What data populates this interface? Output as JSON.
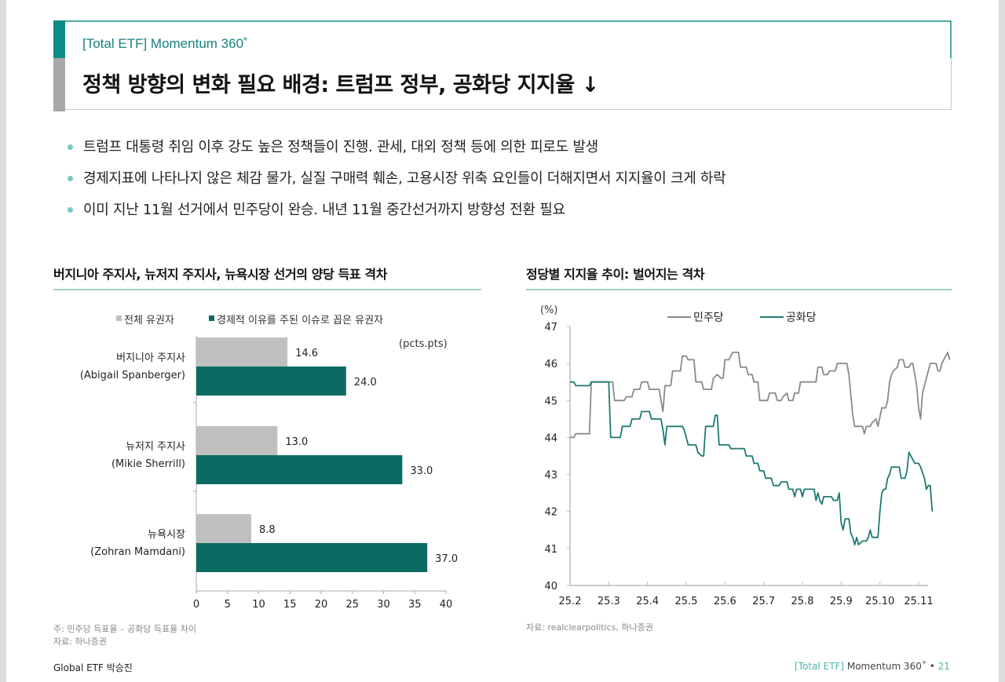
{
  "header": {
    "subtitle": "[Total ETF] Momentum 360˚",
    "title": "정책 방향의 변화 필요 배경: 트럼프 정부, 공화당 지지율 ↓"
  },
  "bullets": [
    "트럼프 대통령 취임 이후 강도 높은 정책들이 진행. 관세, 대외 정책 등에 의한 피로도 발생",
    "경제지표에 나타나지 않은 체감 물가, 실질 구매력 훼손, 고용시장 위축 요인들이 더해지면서 지지율이 크게 하락",
    "이미 지난 11월 선거에서 민주당이 완승. 내년 11월 중간선거까지 방향성 전환 필요"
  ],
  "left_section": {
    "title": "버지니아 주지사, 뉴저지 주지사, 뉴욕시장 선거의 양당 득표 격차",
    "note_line1": "주: 민주당 득표율 – 공화당 득표율 차이",
    "note_line2": "자료: 하나증권"
  },
  "right_section": {
    "title": "정당별 지지율 추이: 벌어지는 격차",
    "source": "자료: realclearpolitics, 하나증권"
  },
  "footer": {
    "left": "Global ETF 박승진",
    "right_bracket": "[Total ETF]",
    "right_text": " Momentum 360˚ • ",
    "page_number": "21"
  },
  "colors": {
    "teal_dark": "#0b6b62",
    "teal_accent": "#0f8c86",
    "grey_bar": "#c0c0c0",
    "dem_line": "#8a8a8a",
    "rep_line": "#1f7a72"
  },
  "chart_data": [
    {
      "type": "bar",
      "orientation": "horizontal",
      "title": "버지니아 주지사, 뉴저지 주지사, 뉴욕시장 선거의 양당 득표 격차",
      "unit_label": "(pcts.pts)",
      "categories": [
        {
          "line1": "버지니아 주지사",
          "line2": "(Abigail Spanberger)"
        },
        {
          "line1": "뉴저지 주지사",
          "line2": "(Mikie Sherrill)"
        },
        {
          "line1": "뉴욕시장",
          "line2": "(Zohran Mamdani)"
        }
      ],
      "series": [
        {
          "name": "전체 유권자",
          "color": "#c0c0c0",
          "values": [
            14.6,
            13.0,
            8.8
          ],
          "labels": [
            "14.6",
            "13.0",
            "8.8"
          ]
        },
        {
          "name": "경제적 이유를 주된 이슈로 꼽은 유권자",
          "color": "#0b6b62",
          "values": [
            24.0,
            33.0,
            37.0
          ],
          "labels": [
            "24.0",
            "33.0",
            "37.0"
          ]
        }
      ],
      "xlim": [
        0,
        40
      ],
      "xticks": [
        "0",
        "5",
        "10",
        "15",
        "20",
        "25",
        "30",
        "35",
        "40"
      ],
      "legend_position": "top"
    },
    {
      "type": "line",
      "title": "정당별 지지율 추이: 벌어지는 격차",
      "ylabel": "(%)",
      "ylim": [
        40,
        47
      ],
      "yticks": [
        "40",
        "41",
        "42",
        "43",
        "44",
        "45",
        "46",
        "47"
      ],
      "xticks": [
        "25.2",
        "25.3",
        "25.4",
        "25.5",
        "25.6",
        "25.7",
        "25.8",
        "25.9",
        "25.10",
        "25.11"
      ],
      "x_unit": "months since 25.2",
      "legend_position": "top-center",
      "series": [
        {
          "name": "민주당",
          "color": "#8a8a8a",
          "points": [
            [
              0,
              44.0
            ],
            [
              0.1,
              44.0
            ],
            [
              0.15,
              44.1
            ],
            [
              0.5,
              44.1
            ],
            [
              0.55,
              45.5
            ],
            [
              1.1,
              45.5
            ],
            [
              1.15,
              45.0
            ],
            [
              1.4,
              45.0
            ],
            [
              1.45,
              45.1
            ],
            [
              1.6,
              45.1
            ],
            [
              1.65,
              45.3
            ],
            [
              1.8,
              45.3
            ],
            [
              1.85,
              45.5
            ],
            [
              2.0,
              45.5
            ],
            [
              2.05,
              45.3
            ],
            [
              2.3,
              45.3
            ],
            [
              2.35,
              45.0
            ],
            [
              2.4,
              44.7
            ],
            [
              2.45,
              45.4
            ],
            [
              2.6,
              45.4
            ],
            [
              2.65,
              45.8
            ],
            [
              2.85,
              45.8
            ],
            [
              2.9,
              46.2
            ],
            [
              3.0,
              46.2
            ],
            [
              3.05,
              46.1
            ],
            [
              3.2,
              46.1
            ],
            [
              3.25,
              45.5
            ],
            [
              3.4,
              45.5
            ],
            [
              3.45,
              45.3
            ],
            [
              3.65,
              45.3
            ],
            [
              3.7,
              45.6
            ],
            [
              3.8,
              45.7
            ],
            [
              3.9,
              45.6
            ],
            [
              3.95,
              45.6
            ],
            [
              4.0,
              46.1
            ],
            [
              4.1,
              46.1
            ],
            [
              4.15,
              46.2
            ],
            [
              4.2,
              46.3
            ],
            [
              4.35,
              46.3
            ],
            [
              4.4,
              45.9
            ],
            [
              4.55,
              45.9
            ],
            [
              4.6,
              45.7
            ],
            [
              4.7,
              45.7
            ],
            [
              4.75,
              45.5
            ],
            [
              4.85,
              45.5
            ],
            [
              4.9,
              45.0
            ],
            [
              5.1,
              45.0
            ],
            [
              5.15,
              45.2
            ],
            [
              5.3,
              45.2
            ],
            [
              5.35,
              45.0
            ],
            [
              5.45,
              45.0
            ],
            [
              5.5,
              45.1
            ],
            [
              5.6,
              45.2
            ],
            [
              5.65,
              45.0
            ],
            [
              5.75,
              45.0
            ],
            [
              5.8,
              45.2
            ],
            [
              5.9,
              45.2
            ],
            [
              5.95,
              45.5
            ],
            [
              6.35,
              45.5
            ],
            [
              6.4,
              45.9
            ],
            [
              6.5,
              45.9
            ],
            [
              6.55,
              45.7
            ],
            [
              6.65,
              45.7
            ],
            [
              6.7,
              45.8
            ],
            [
              6.85,
              45.8
            ],
            [
              6.9,
              46.0
            ],
            [
              7.15,
              46.0
            ],
            [
              7.2,
              45.7
            ],
            [
              7.3,
              44.6
            ],
            [
              7.35,
              44.3
            ],
            [
              7.55,
              44.3
            ],
            [
              7.6,
              44.1
            ],
            [
              7.65,
              44.3
            ],
            [
              7.75,
              44.3
            ],
            [
              7.8,
              44.4
            ],
            [
              7.9,
              44.5
            ],
            [
              7.95,
              44.3
            ],
            [
              8.05,
              44.8
            ],
            [
              8.15,
              44.8
            ],
            [
              8.2,
              45.0
            ],
            [
              8.25,
              45.5
            ],
            [
              8.3,
              45.7
            ],
            [
              8.35,
              45.8
            ],
            [
              8.45,
              45.9
            ],
            [
              8.5,
              46.1
            ],
            [
              8.6,
              46.1
            ],
            [
              8.65,
              45.9
            ],
            [
              8.75,
              45.9
            ],
            [
              8.8,
              46.0
            ],
            [
              8.85,
              46.0
            ],
            [
              8.95,
              45.4
            ],
            [
              9.0,
              44.8
            ],
            [
              9.05,
              44.5
            ],
            [
              9.1,
              45.2
            ],
            [
              9.15,
              45.4
            ],
            [
              9.25,
              45.8
            ],
            [
              9.3,
              46.0
            ],
            [
              9.45,
              46.0
            ],
            [
              9.5,
              45.8
            ],
            [
              9.55,
              45.8
            ],
            [
              9.6,
              46.0
            ],
            [
              9.7,
              46.2
            ],
            [
              9.75,
              46.3
            ],
            [
              9.8,
              46.1
            ]
          ]
        },
        {
          "name": "공화당",
          "color": "#1f7a72",
          "points": [
            [
              0,
              45.5
            ],
            [
              0.1,
              45.5
            ],
            [
              0.15,
              45.4
            ],
            [
              0.5,
              45.4
            ],
            [
              0.55,
              45.5
            ],
            [
              1.0,
              45.5
            ],
            [
              1.05,
              44.0
            ],
            [
              1.3,
              44.0
            ],
            [
              1.35,
              44.3
            ],
            [
              1.55,
              44.3
            ],
            [
              1.6,
              44.5
            ],
            [
              1.8,
              44.5
            ],
            [
              1.85,
              44.7
            ],
            [
              2.05,
              44.7
            ],
            [
              2.1,
              44.5
            ],
            [
              2.35,
              44.5
            ],
            [
              2.4,
              44.2
            ],
            [
              2.45,
              43.8
            ],
            [
              2.5,
              44.3
            ],
            [
              2.9,
              44.3
            ],
            [
              2.95,
              44.2
            ],
            [
              3.05,
              43.8
            ],
            [
              3.25,
              43.8
            ],
            [
              3.3,
              43.6
            ],
            [
              3.4,
              43.5
            ],
            [
              3.45,
              43.5
            ],
            [
              3.5,
              44.3
            ],
            [
              3.7,
              44.3
            ],
            [
              3.75,
              44.6
            ],
            [
              3.8,
              44.6
            ],
            [
              3.85,
              43.8
            ],
            [
              4.1,
              43.8
            ],
            [
              4.15,
              43.7
            ],
            [
              4.5,
              43.7
            ],
            [
              4.55,
              43.5
            ],
            [
              4.7,
              43.5
            ],
            [
              4.75,
              43.3
            ],
            [
              4.85,
              43.3
            ],
            [
              4.9,
              43.1
            ],
            [
              5.0,
              43.1
            ],
            [
              5.05,
              42.9
            ],
            [
              5.2,
              42.9
            ],
            [
              5.25,
              42.7
            ],
            [
              5.4,
              42.7
            ],
            [
              5.45,
              42.8
            ],
            [
              5.6,
              42.8
            ],
            [
              5.65,
              42.6
            ],
            [
              5.75,
              42.6
            ],
            [
              5.8,
              42.4
            ],
            [
              5.85,
              42.6
            ],
            [
              5.95,
              42.6
            ],
            [
              6.0,
              42.4
            ],
            [
              6.05,
              42.6
            ],
            [
              6.3,
              42.6
            ],
            [
              6.35,
              42.3
            ],
            [
              6.4,
              42.5
            ],
            [
              6.45,
              42.3
            ],
            [
              6.5,
              42.2
            ],
            [
              6.55,
              42.4
            ],
            [
              6.75,
              42.4
            ],
            [
              6.8,
              42.3
            ],
            [
              6.9,
              42.3
            ],
            [
              6.95,
              42.5
            ],
            [
              7.0,
              41.7
            ],
            [
              7.05,
              41.5
            ],
            [
              7.1,
              41.8
            ],
            [
              7.2,
              41.8
            ],
            [
              7.25,
              41.4
            ],
            [
              7.3,
              41.3
            ],
            [
              7.35,
              41.1
            ],
            [
              7.4,
              41.3
            ],
            [
              7.45,
              41.1
            ],
            [
              7.55,
              41.2
            ],
            [
              7.65,
              41.2
            ],
            [
              7.7,
              41.3
            ],
            [
              7.75,
              41.5
            ],
            [
              7.8,
              41.3
            ],
            [
              7.95,
              41.3
            ],
            [
              8.0,
              42.0
            ],
            [
              8.05,
              42.5
            ],
            [
              8.1,
              42.6
            ],
            [
              8.15,
              42.6
            ],
            [
              8.2,
              42.9
            ],
            [
              8.25,
              43.0
            ],
            [
              8.3,
              43.2
            ],
            [
              8.5,
              43.2
            ],
            [
              8.55,
              42.9
            ],
            [
              8.65,
              42.9
            ],
            [
              8.7,
              43.1
            ],
            [
              8.75,
              43.6
            ],
            [
              8.8,
              43.5
            ],
            [
              8.9,
              43.3
            ],
            [
              9.0,
              43.3
            ],
            [
              9.05,
              43.2
            ],
            [
              9.15,
              42.9
            ],
            [
              9.2,
              42.6
            ],
            [
              9.25,
              42.7
            ],
            [
              9.3,
              42.7
            ],
            [
              9.35,
              42.0
            ]
          ]
        }
      ]
    }
  ]
}
